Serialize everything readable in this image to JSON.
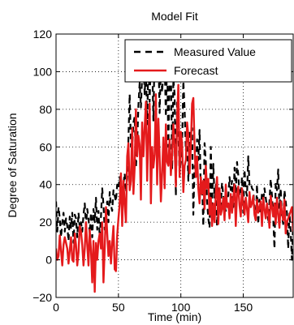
{
  "chart_data": {
    "type": "line",
    "title": "Model Fit",
    "xlabel": "Time (min)",
    "ylabel": "Degree of Saturation",
    "xlim": [
      0,
      190
    ],
    "ylim": [
      -20,
      120
    ],
    "x_ticks": [
      0,
      50,
      100,
      150
    ],
    "y_ticks": [
      -20,
      0,
      20,
      40,
      60,
      80,
      100,
      120
    ],
    "grid": true,
    "legend_position": "top-right",
    "series": [
      {
        "name": "Measured Value",
        "color": "#000000",
        "dash": "dashed",
        "values": [
          31,
          15,
          28,
          22,
          12,
          20,
          25,
          15,
          22,
          18,
          10,
          23,
          17,
          25,
          9,
          24,
          22,
          12,
          25,
          17,
          20,
          15,
          24,
          30,
          18,
          27,
          22,
          14,
          25,
          12,
          27,
          20,
          33,
          16,
          26,
          12,
          23,
          38,
          29,
          16,
          27,
          31,
          20,
          36,
          29,
          26,
          37,
          34,
          31,
          40,
          38,
          44,
          39,
          35,
          40,
          46,
          36,
          43,
          64,
          88,
          60,
          60,
          73,
          76,
          49,
          62,
          82,
          94,
          81,
          98,
          109,
          88,
          103,
          72,
          106,
          84,
          108,
          106,
          74,
          112,
          99,
          111,
          109,
          78,
          103,
          89,
          101,
          106,
          76,
          108,
          60,
          98,
          104,
          48,
          96,
          88,
          34,
          85,
          68,
          46,
          53,
          61,
          95,
          80,
          58,
          67,
          42,
          69,
          63,
          70,
          24,
          50,
          44,
          64,
          53,
          69,
          35,
          41,
          18,
          62,
          52,
          31,
          22,
          17,
          60,
          29,
          51,
          33,
          40,
          18,
          38,
          30,
          29,
          41,
          34,
          29,
          26,
          33,
          34,
          44,
          37,
          42,
          28,
          49,
          35,
          52,
          45,
          34,
          36,
          44,
          25,
          48,
          37,
          34,
          55,
          40,
          41,
          38,
          37,
          27,
          20,
          40,
          19,
          32,
          25,
          36,
          31,
          38,
          33,
          28,
          21,
          31,
          43,
          34,
          22,
          6,
          41,
          37,
          48,
          27,
          38,
          23,
          19,
          37,
          31,
          25,
          6,
          25,
          15,
          0,
          20
        ]
      },
      {
        "name": "Forecast",
        "color": "#e41a1c",
        "dash": "solid",
        "values": [
          6,
          0,
          2,
          13,
          5,
          -3,
          8,
          12,
          9,
          6,
          -2,
          5,
          12,
          0,
          -1,
          14,
          8,
          -3,
          4,
          18,
          15,
          8,
          -3,
          6,
          20,
          8,
          -3,
          16,
          5,
          -12,
          10,
          -17,
          9,
          0,
          10,
          14,
          6,
          20,
          -12,
          6,
          28,
          14,
          2,
          10,
          -2,
          9,
          18,
          -5,
          -6,
          13,
          22,
          30,
          46,
          18,
          42,
          30,
          20,
          55,
          62,
          37,
          42,
          70,
          35,
          49,
          80,
          55,
          66,
          61,
          32,
          73,
          55,
          70,
          84,
          42,
          67,
          83,
          30,
          60,
          49,
          56,
          88,
          40,
          75,
          55,
          31,
          46,
          65,
          38,
          72,
          52,
          50,
          64,
          45,
          56,
          72,
          60,
          39,
          75,
          93,
          44,
          68,
          62,
          36,
          50,
          53,
          73,
          66,
          46,
          60,
          83,
          86,
          60,
          44,
          55,
          38,
          30,
          44,
          35,
          42,
          27,
          50,
          38,
          43,
          24,
          33,
          18,
          30,
          20,
          35,
          44,
          19,
          38,
          24,
          27,
          33,
          21,
          40,
          28,
          30,
          22,
          35,
          25,
          33,
          40,
          18,
          35,
          39,
          29,
          23,
          38,
          30,
          24,
          33,
          27,
          20,
          36,
          28,
          30,
          34,
          24,
          21,
          32,
          25,
          28,
          31,
          18,
          33,
          27,
          22,
          30,
          25,
          17,
          34,
          28,
          23,
          30,
          19,
          33,
          24,
          17,
          31,
          25,
          21,
          32,
          14,
          20,
          22,
          24,
          26,
          28,
          15
        ]
      }
    ]
  }
}
